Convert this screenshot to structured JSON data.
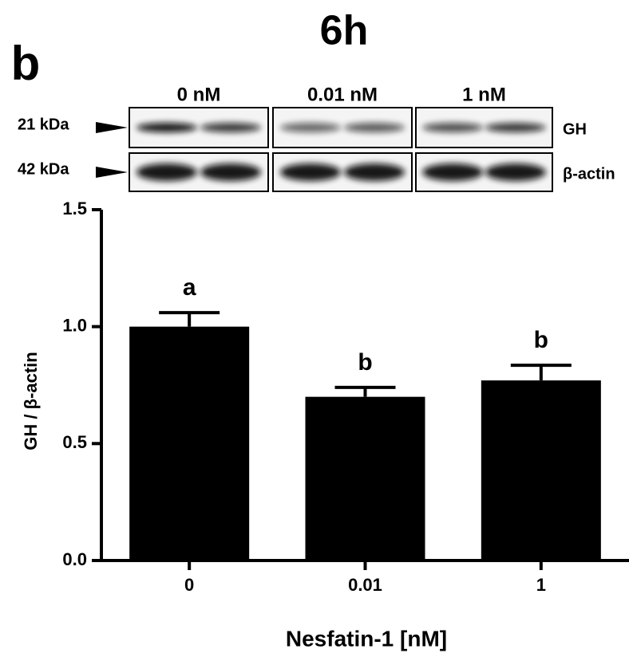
{
  "title": "6h",
  "panel_label": "b",
  "blot": {
    "lanes": [
      "0 nM",
      "0.01 nM",
      "1 nM"
    ],
    "rows": [
      {
        "marker": "21 kDa",
        "protein": "GH"
      },
      {
        "marker": "42 kDa",
        "protein": "β-actin"
      }
    ]
  },
  "chart_data": {
    "type": "bar",
    "categories": [
      "0",
      "0.01",
      "1"
    ],
    "values": [
      1.0,
      0.7,
      0.77
    ],
    "errors": [
      0.06,
      0.04,
      0.065
    ],
    "significance": [
      "a",
      "b",
      "b"
    ],
    "color": "#000000",
    "ylim": [
      0,
      1.5
    ],
    "yticks": [
      {
        "value": 0,
        "label": "0.0"
      },
      0.5,
      {
        "value": 1,
        "label": "1.0"
      },
      1.5
    ],
    "ylabel": "GH / β-actin",
    "xlabel": "Nesfatin-1 [nM]",
    "grid": false
  }
}
